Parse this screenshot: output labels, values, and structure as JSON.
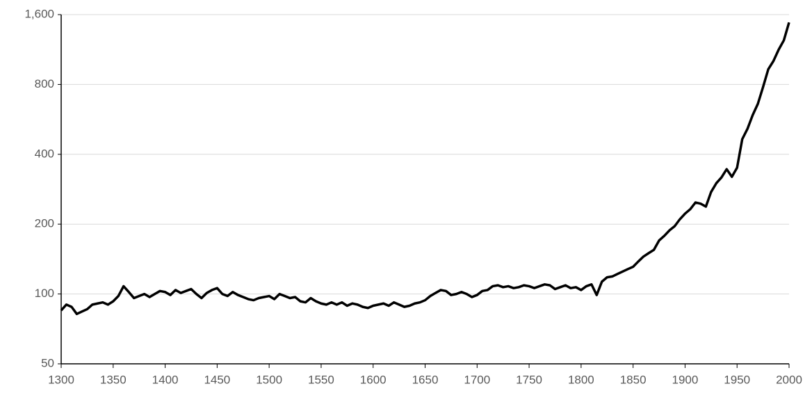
{
  "chart_data": {
    "type": "line",
    "color": "#000000",
    "yscale": "log",
    "grid": true,
    "x": [
      1300,
      1305,
      1310,
      1315,
      1320,
      1325,
      1330,
      1335,
      1340,
      1345,
      1350,
      1355,
      1360,
      1365,
      1370,
      1375,
      1380,
      1385,
      1390,
      1395,
      1400,
      1405,
      1410,
      1415,
      1420,
      1425,
      1430,
      1435,
      1440,
      1445,
      1450,
      1455,
      1460,
      1465,
      1470,
      1475,
      1480,
      1485,
      1490,
      1495,
      1500,
      1505,
      1510,
      1515,
      1520,
      1525,
      1530,
      1535,
      1540,
      1545,
      1550,
      1555,
      1560,
      1565,
      1570,
      1575,
      1580,
      1585,
      1590,
      1595,
      1600,
      1605,
      1610,
      1615,
      1620,
      1625,
      1630,
      1635,
      1640,
      1645,
      1650,
      1655,
      1660,
      1665,
      1670,
      1675,
      1680,
      1685,
      1690,
      1695,
      1700,
      1705,
      1710,
      1715,
      1720,
      1725,
      1730,
      1735,
      1740,
      1745,
      1750,
      1755,
      1760,
      1765,
      1770,
      1775,
      1780,
      1785,
      1790,
      1795,
      1800,
      1805,
      1810,
      1815,
      1820,
      1825,
      1830,
      1835,
      1840,
      1845,
      1850,
      1855,
      1860,
      1865,
      1870,
      1875,
      1880,
      1885,
      1890,
      1895,
      1900,
      1905,
      1910,
      1915,
      1920,
      1925,
      1930,
      1935,
      1940,
      1945,
      1950,
      1955,
      1960,
      1965,
      1970,
      1975,
      1980,
      1985,
      1990,
      1995,
      2000
    ],
    "values": [
      85,
      90,
      88,
      82,
      84,
      86,
      90,
      91,
      92,
      90,
      93,
      98,
      108,
      102,
      96,
      98,
      100,
      97,
      100,
      103,
      102,
      99,
      104,
      101,
      103,
      105,
      100,
      96,
      101,
      104,
      106,
      100,
      98,
      102,
      99,
      97,
      95,
      94,
      96,
      97,
      98,
      95,
      100,
      98,
      96,
      97,
      93,
      92,
      96,
      93,
      91,
      90,
      92,
      90,
      92,
      89,
      91,
      90,
      88,
      87,
      89,
      90,
      91,
      89,
      92,
      90,
      88,
      89,
      91,
      92,
      94,
      98,
      101,
      104,
      103,
      99,
      100,
      102,
      100,
      97,
      99,
      103,
      104,
      108,
      109,
      107,
      108,
      106,
      107,
      109,
      108,
      106,
      108,
      110,
      109,
      105,
      107,
      109,
      106,
      107,
      104,
      108,
      110,
      99,
      113,
      118,
      119,
      122,
      125,
      128,
      131,
      138,
      145,
      150,
      155,
      170,
      178,
      188,
      196,
      210,
      222,
      232,
      248,
      245,
      238,
      275,
      300,
      318,
      345,
      320,
      350,
      465,
      515,
      590,
      660,
      780,
      930,
      1010,
      1130,
      1240,
      1480
    ],
    "xlim": [
      1300,
      2000
    ],
    "xticks": [
      1300,
      1350,
      1400,
      1450,
      1500,
      1550,
      1600,
      1650,
      1700,
      1750,
      1800,
      1850,
      1900,
      1950,
      2000
    ],
    "ylim": [
      50,
      1600
    ],
    "yticks": [
      50,
      100,
      200,
      400,
      800,
      {
        "value": 1600,
        "label": "1,600"
      }
    ]
  }
}
